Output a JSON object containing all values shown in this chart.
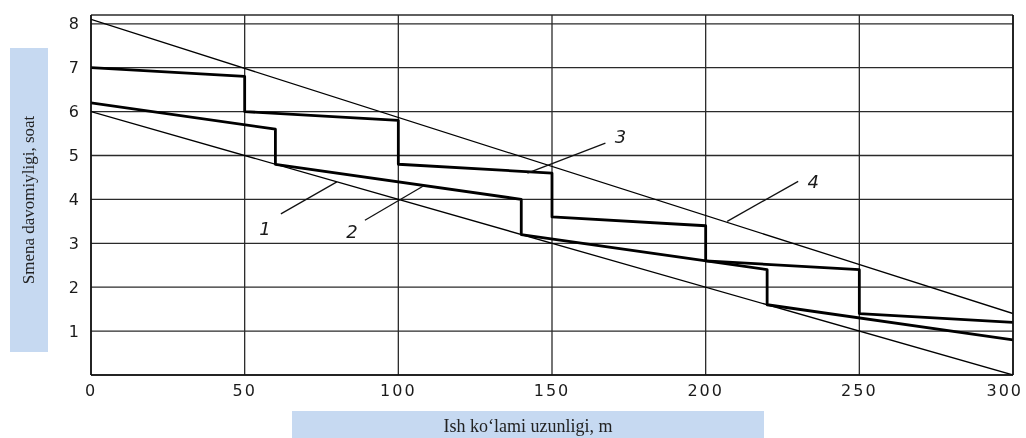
{
  "chart_data": {
    "type": "line",
    "xlabel": "Ish ko‘lami uzunligi, m",
    "ylabel": "Smena davomiyligi, soat",
    "xlim": [
      0,
      300
    ],
    "xticks": [
      0,
      50,
      100,
      150,
      200,
      250,
      300
    ],
    "ylim": [
      0,
      8.2
    ],
    "yticks": [
      1,
      2,
      3,
      4,
      5,
      6,
      7,
      8
    ],
    "grid": true,
    "marker": "none",
    "line_style": "solid",
    "series": [
      {
        "color": "#000000",
        "x": [
          0,
          300
        ],
        "values": [
          6,
          0
        ]
      },
      {
        "color": "#000000",
        "x": [
          0,
          60,
          60,
          140,
          140,
          220,
          220,
          300
        ],
        "values": [
          6.2,
          5.6,
          4.8,
          4.0,
          3.2,
          2.4,
          1.6,
          0.8
        ]
      },
      {
        "color": "#000000",
        "x": [
          0,
          50,
          50,
          100,
          100,
          150,
          150,
          200,
          200,
          250,
          250,
          300
        ],
        "values": [
          7,
          6.8,
          6.0,
          5.8,
          4.8,
          4.6,
          3.6,
          3.4,
          2.6,
          2.4,
          1.4,
          1.2
        ]
      },
      {
        "color": "#000000",
        "x": [
          0,
          300
        ],
        "values": [
          8.1,
          1.4
        ]
      }
    ],
    "annotations": [
      {
        "text": "1",
        "x": 80,
        "y": 4.4
      },
      {
        "text": "2",
        "x": 108,
        "y": 4.3
      },
      {
        "text": "3",
        "x": 142,
        "y": 4.6
      },
      {
        "text": "4",
        "x": 207,
        "y": 3.5
      }
    ]
  }
}
